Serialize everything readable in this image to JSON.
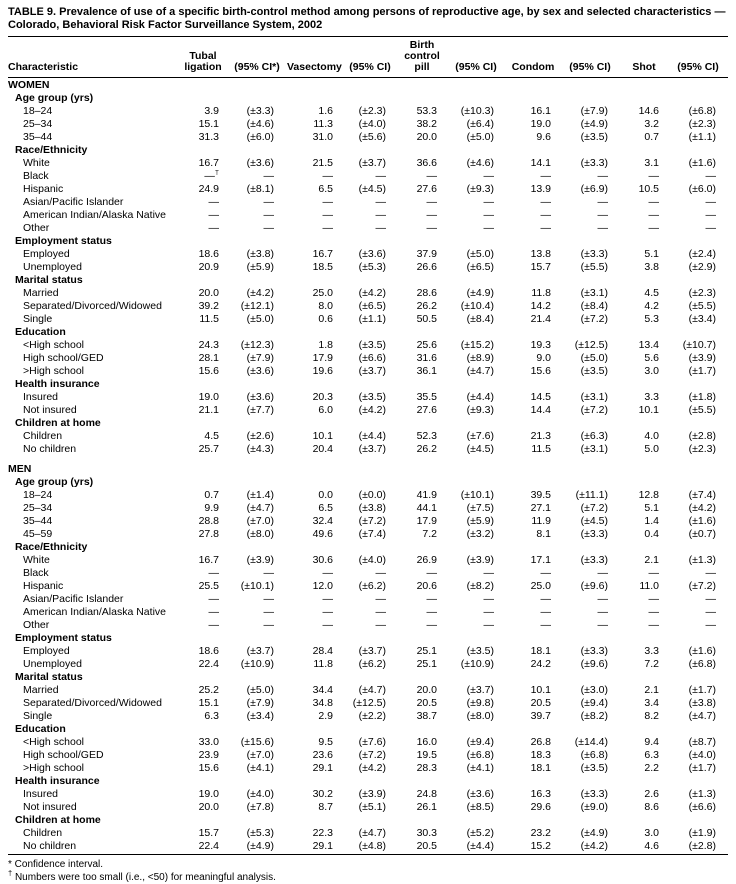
{
  "title": "TABLE 9. Prevalence of use of a specific birth-control method among persons of reproductive age, by sex and selected characteristics — Colorado, Behavioral Risk Factor Surveillance System, 2002",
  "header": {
    "columns": [
      "Characteristic",
      "Tubal ligation",
      "(95% CI*)",
      "Vasectomy",
      "(95% CI)",
      "Birth control pill",
      "(95% CI)",
      "Condom",
      "(95% CI)",
      "Shot",
      "(95% CI)"
    ]
  },
  "rows": [
    {
      "type": "section",
      "label": "WOMEN"
    },
    {
      "type": "group",
      "label": "Age group (yrs)"
    },
    {
      "type": "data",
      "label": "18–24",
      "values": [
        "3.9",
        "(±3.3)",
        "1.6",
        "(±2.3)",
        "53.3",
        "(±10.3)",
        "16.1",
        "(±7.9)",
        "14.6",
        "(±6.8)"
      ]
    },
    {
      "type": "data",
      "label": "25–34",
      "values": [
        "15.1",
        "(±4.6)",
        "11.3",
        "(±4.0)",
        "38.2",
        "(±6.4)",
        "19.0",
        "(±4.9)",
        "3.2",
        "(±2.3)"
      ]
    },
    {
      "type": "data",
      "label": "35–44",
      "values": [
        "31.3",
        "(±6.0)",
        "31.0",
        "(±5.6)",
        "20.0",
        "(±5.0)",
        "9.6",
        "(±3.5)",
        "0.7",
        "(±1.1)"
      ]
    },
    {
      "type": "group",
      "label": "Race/Ethnicity"
    },
    {
      "type": "data",
      "label": "White",
      "values": [
        "16.7",
        "(±3.6)",
        "21.5",
        "(±3.7)",
        "36.6",
        "(±4.6)",
        "14.1",
        "(±3.3)",
        "3.1",
        "(±1.6)"
      ]
    },
    {
      "type": "data",
      "label": "Black",
      "values": [
        "—†",
        "—",
        "—",
        "—",
        "—",
        "—",
        "—",
        "—",
        "—",
        "—"
      ]
    },
    {
      "type": "data",
      "label": "Hispanic",
      "values": [
        "24.9",
        "(±8.1)",
        "6.5",
        "(±4.5)",
        "27.6",
        "(±9.3)",
        "13.9",
        "(±6.9)",
        "10.5",
        "(±6.0)"
      ]
    },
    {
      "type": "data",
      "label": "Asian/Pacific Islander",
      "values": [
        "—",
        "—",
        "—",
        "—",
        "—",
        "—",
        "—",
        "—",
        "—",
        "—"
      ]
    },
    {
      "type": "data",
      "label": "American Indian/Alaska Native",
      "values": [
        "—",
        "—",
        "—",
        "—",
        "—",
        "—",
        "—",
        "—",
        "—",
        "—"
      ]
    },
    {
      "type": "data",
      "label": "Other",
      "values": [
        "—",
        "—",
        "—",
        "—",
        "—",
        "—",
        "—",
        "—",
        "—",
        "—"
      ]
    },
    {
      "type": "group",
      "label": "Employment status"
    },
    {
      "type": "data",
      "label": "Employed",
      "values": [
        "18.6",
        "(±3.8)",
        "16.7",
        "(±3.6)",
        "37.9",
        "(±5.0)",
        "13.8",
        "(±3.3)",
        "5.1",
        "(±2.4)"
      ]
    },
    {
      "type": "data",
      "label": "Unemployed",
      "values": [
        "20.9",
        "(±5.9)",
        "18.5",
        "(±5.3)",
        "26.6",
        "(±6.5)",
        "15.7",
        "(±5.5)",
        "3.8",
        "(±2.9)"
      ]
    },
    {
      "type": "group",
      "label": "Marital status"
    },
    {
      "type": "data",
      "label": "Married",
      "values": [
        "20.0",
        "(±4.2)",
        "25.0",
        "(±4.2)",
        "28.6",
        "(±4.9)",
        "11.8",
        "(±3.1)",
        "4.5",
        "(±2.3)"
      ]
    },
    {
      "type": "data",
      "label": "Separated/Divorced/Widowed",
      "values": [
        "39.2",
        "(±12.1)",
        "8.0",
        "(±6.5)",
        "26.2",
        "(±10.4)",
        "14.2",
        "(±8.4)",
        "4.2",
        "(±5.5)"
      ]
    },
    {
      "type": "data",
      "label": "Single",
      "values": [
        "11.5",
        "(±5.0)",
        "0.6",
        "(±1.1)",
        "50.5",
        "(±8.4)",
        "21.4",
        "(±7.2)",
        "5.3",
        "(±3.4)"
      ]
    },
    {
      "type": "group",
      "label": "Education"
    },
    {
      "type": "data",
      "label": "<High school",
      "values": [
        "24.3",
        "(±12.3)",
        "1.8",
        "(±3.5)",
        "25.6",
        "(±15.2)",
        "19.3",
        "(±12.5)",
        "13.4",
        "(±10.7)"
      ]
    },
    {
      "type": "data",
      "label": "High school/GED",
      "values": [
        "28.1",
        "(±7.9)",
        "17.9",
        "(±6.6)",
        "31.6",
        "(±8.9)",
        "9.0",
        "(±5.0)",
        "5.6",
        "(±3.9)"
      ]
    },
    {
      "type": "data",
      "label": ">High school",
      "values": [
        "15.6",
        "(±3.6)",
        "19.6",
        "(±3.7)",
        "36.1",
        "(±4.7)",
        "15.6",
        "(±3.5)",
        "3.0",
        "(±1.7)"
      ]
    },
    {
      "type": "group",
      "label": "Health insurance"
    },
    {
      "type": "data",
      "label": "Insured",
      "values": [
        "19.0",
        "(±3.6)",
        "20.3",
        "(±3.5)",
        "35.5",
        "(±4.4)",
        "14.5",
        "(±3.1)",
        "3.3",
        "(±1.8)"
      ]
    },
    {
      "type": "data",
      "label": "Not insured",
      "values": [
        "21.1",
        "(±7.7)",
        "6.0",
        "(±4.2)",
        "27.6",
        "(±9.3)",
        "14.4",
        "(±7.2)",
        "10.1",
        "(±5.5)"
      ]
    },
    {
      "type": "group",
      "label": "Children at home"
    },
    {
      "type": "data",
      "label": "Children",
      "values": [
        "4.5",
        "(±2.6)",
        "10.1",
        "(±4.4)",
        "52.3",
        "(±7.6)",
        "21.3",
        "(±6.3)",
        "4.0",
        "(±2.8)"
      ]
    },
    {
      "type": "data",
      "label": "No children",
      "values": [
        "25.7",
        "(±4.3)",
        "20.4",
        "(±3.7)",
        "26.2",
        "(±4.5)",
        "11.5",
        "(±3.1)",
        "5.0",
        "(±2.3)"
      ]
    },
    {
      "type": "spacer"
    },
    {
      "type": "section",
      "label": "MEN"
    },
    {
      "type": "group",
      "label": "Age group (yrs)"
    },
    {
      "type": "data",
      "label": "18–24",
      "values": [
        "0.7",
        "(±1.4)",
        "0.0",
        "(±0.0)",
        "41.9",
        "(±10.1)",
        "39.5",
        "(±11.1)",
        "12.8",
        "(±7.4)"
      ]
    },
    {
      "type": "data",
      "label": "25–34",
      "values": [
        "9.9",
        "(±4.7)",
        "6.5",
        "(±3.8)",
        "44.1",
        "(±7.5)",
        "27.1",
        "(±7.2)",
        "5.1",
        "(±4.2)"
      ]
    },
    {
      "type": "data",
      "label": "35–44",
      "values": [
        "28.8",
        "(±7.0)",
        "32.4",
        "(±7.2)",
        "17.9",
        "(±5.9)",
        "11.9",
        "(±4.5)",
        "1.4",
        "(±1.6)"
      ]
    },
    {
      "type": "data",
      "label": "45–59",
      "values": [
        "27.8",
        "(±8.0)",
        "49.6",
        "(±7.4)",
        "7.2",
        "(±3.2)",
        "8.1",
        "(±3.3)",
        "0.4",
        "(±0.7)"
      ]
    },
    {
      "type": "group",
      "label": "Race/Ethnicity"
    },
    {
      "type": "data",
      "label": "White",
      "values": [
        "16.7",
        "(±3.9)",
        "30.6",
        "(±4.0)",
        "26.9",
        "(±3.9)",
        "17.1",
        "(±3.3)",
        "2.1",
        "(±1.3)"
      ]
    },
    {
      "type": "data",
      "label": "Black",
      "values": [
        "—",
        "—",
        "—",
        "—",
        "—",
        "—",
        "—",
        "—",
        "—",
        "—"
      ]
    },
    {
      "type": "data",
      "label": "Hispanic",
      "values": [
        "25.5",
        "(±10.1)",
        "12.0",
        "(±6.2)",
        "20.6",
        "(±8.2)",
        "25.0",
        "(±9.6)",
        "11.0",
        "(±7.2)"
      ]
    },
    {
      "type": "data",
      "label": "Asian/Pacific Islander",
      "values": [
        "—",
        "—",
        "—",
        "—",
        "—",
        "—",
        "—",
        "—",
        "—",
        "—"
      ]
    },
    {
      "type": "data",
      "label": "American Indian/Alaska Native",
      "values": [
        "—",
        "—",
        "—",
        "—",
        "—",
        "—",
        "—",
        "—",
        "—",
        "—"
      ]
    },
    {
      "type": "data",
      "label": "Other",
      "values": [
        "—",
        "—",
        "—",
        "—",
        "—",
        "—",
        "—",
        "—",
        "—",
        "—"
      ]
    },
    {
      "type": "group",
      "label": "Employment status"
    },
    {
      "type": "data",
      "label": "Employed",
      "values": [
        "18.6",
        "(±3.7)",
        "28.4",
        "(±3.7)",
        "25.1",
        "(±3.5)",
        "18.1",
        "(±3.3)",
        "3.3",
        "(±1.6)"
      ]
    },
    {
      "type": "data",
      "label": "Unemployed",
      "values": [
        "22.4",
        "(±10.9)",
        "11.8",
        "(±6.2)",
        "25.1",
        "(±10.9)",
        "24.2",
        "(±9.6)",
        "7.2",
        "(±6.8)"
      ]
    },
    {
      "type": "group",
      "label": "Marital status"
    },
    {
      "type": "data",
      "label": "Married",
      "values": [
        "25.2",
        "(±5.0)",
        "34.4",
        "(±4.7)",
        "20.0",
        "(±3.7)",
        "10.1",
        "(±3.0)",
        "2.1",
        "(±1.7)"
      ]
    },
    {
      "type": "data",
      "label": "Separated/Divorced/Widowed",
      "values": [
        "15.1",
        "(±7.9)",
        "34.8",
        "(±12.5)",
        "20.5",
        "(±9.8)",
        "20.5",
        "(±9.4)",
        "3.4",
        "(±3.8)"
      ]
    },
    {
      "type": "data",
      "label": "Single",
      "values": [
        "6.3",
        "(±3.4)",
        "2.9",
        "(±2.2)",
        "38.7",
        "(±8.0)",
        "39.7",
        "(±8.2)",
        "8.2",
        "(±4.7)"
      ]
    },
    {
      "type": "group",
      "label": "Education"
    },
    {
      "type": "data",
      "label": "<High school",
      "values": [
        "33.0",
        "(±15.6)",
        "9.5",
        "(±7.6)",
        "16.0",
        "(±9.4)",
        "26.8",
        "(±14.4)",
        "9.4",
        "(±8.7)"
      ]
    },
    {
      "type": "data",
      "label": "High school/GED",
      "values": [
        "23.9",
        "(±7.0)",
        "23.6",
        "(±7.2)",
        "19.5",
        "(±6.8)",
        "18.3",
        "(±6.8)",
        "6.3",
        "(±4.0)"
      ]
    },
    {
      "type": "data",
      "label": ">High school",
      "values": [
        "15.6",
        "(±4.1)",
        "29.1",
        "(±4.2)",
        "28.3",
        "(±4.1)",
        "18.1",
        "(±3.5)",
        "2.2",
        "(±1.7)"
      ]
    },
    {
      "type": "group",
      "label": "Health insurance"
    },
    {
      "type": "data",
      "label": "Insured",
      "values": [
        "19.0",
        "(±4.0)",
        "30.2",
        "(±3.9)",
        "24.8",
        "(±3.6)",
        "16.3",
        "(±3.3)",
        "2.6",
        "(±1.3)"
      ]
    },
    {
      "type": "data",
      "label": "Not insured",
      "values": [
        "20.0",
        "(±7.8)",
        "8.7",
        "(±5.1)",
        "26.1",
        "(±8.5)",
        "29.6",
        "(±9.0)",
        "8.6",
        "(±6.6)"
      ]
    },
    {
      "type": "group",
      "label": "Children at home"
    },
    {
      "type": "data",
      "label": "Children",
      "values": [
        "15.7",
        "(±5.3)",
        "22.3",
        "(±4.7)",
        "30.3",
        "(±5.2)",
        "23.2",
        "(±4.9)",
        "3.0",
        "(±1.9)"
      ]
    },
    {
      "type": "data",
      "label": "No children",
      "values": [
        "22.4",
        "(±4.9)",
        "29.1",
        "(±4.8)",
        "20.5",
        "(±4.4)",
        "15.2",
        "(±4.2)",
        "4.6",
        "(±2.8)"
      ]
    }
  ],
  "footnotes": [
    {
      "marker": "*",
      "text": "Confidence interval."
    },
    {
      "marker": "†",
      "text": "Numbers were too small (i.e., <50) for meaningful analysis."
    }
  ]
}
